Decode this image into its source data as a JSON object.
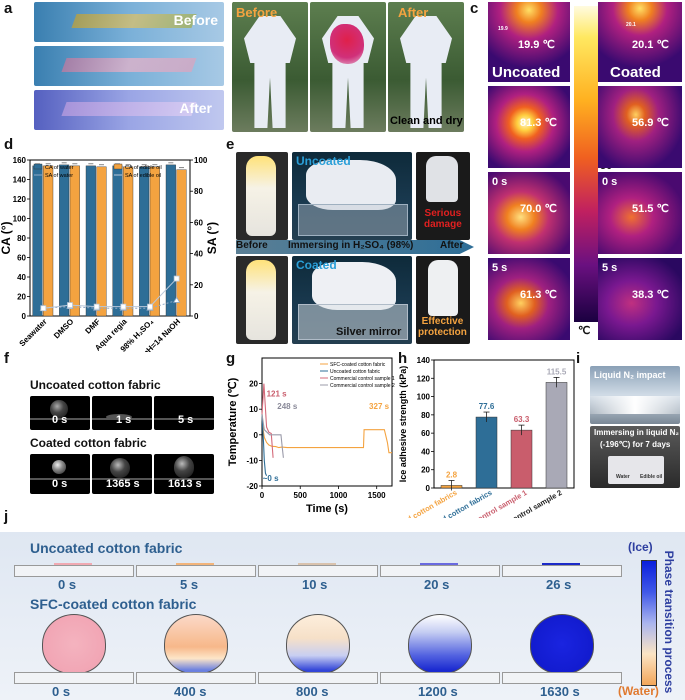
{
  "panels": {
    "a": "a",
    "b": "b",
    "c": "c",
    "d": "d",
    "e": "e",
    "f": "f",
    "g": "g",
    "h": "h",
    "i": "i",
    "j": "j"
  },
  "a": {
    "before": "Before",
    "after": "After"
  },
  "b": {
    "before": "Before",
    "after": "After",
    "caption": "Clean and dry"
  },
  "c": {
    "uncoated": "Uncoated",
    "coated": "Coated",
    "uncoated_temps": [
      "19.9 ℃",
      "81.3 ℃",
      "70.0 ℃",
      "61.3 ℃"
    ],
    "coated_temps": [
      "20.1 ℃",
      "56.9 ℃",
      "51.5 ℃",
      "38.3 ℃"
    ],
    "time_labels": [
      "0 s",
      "5 s"
    ],
    "spot_labels": [
      "19.9",
      "20.1"
    ],
    "scale_ticks": [
      "80",
      "70",
      "60",
      "50",
      "40",
      "30",
      "20"
    ],
    "scale_unit": "℃"
  },
  "e": {
    "uncoated": "Uncoated",
    "coated": "Coated",
    "arrow": "Immersing in H₂SO₄ (98%)",
    "before": "Before",
    "after": "After",
    "serious": "Serious",
    "damage": "damage",
    "silver": "Silver mirror",
    "effective": "Effective",
    "protection": "protection"
  },
  "f": {
    "uncoated_title": "Uncoated cotton fabric",
    "coated_title": "Coated cotton fabric",
    "uncoated_times": [
      "0 s",
      "1 s",
      "5 s"
    ],
    "coated_times": [
      "0 s",
      "1365 s",
      "1613 s"
    ]
  },
  "i": {
    "impact": "Liquid N₂ impact",
    "immerse1": "Immersing in liquid N₂",
    "immerse2": "(-196℃) for 7 days",
    "water": "Water",
    "oil": "Edible oil"
  },
  "j": {
    "uncoated_title": "Uncoated cotton fabric",
    "coated_title": "SFC-coated cotton fabric",
    "uncoated_times": [
      "0 s",
      "5 s",
      "10 s",
      "20 s",
      "26 s"
    ],
    "coated_times": [
      "0 s",
      "400 s",
      "800 s",
      "1200 s",
      "1630 s"
    ],
    "bar_top": "(Ice)",
    "bar_bottom": "(Water)",
    "bar_title": "Phase transition process"
  },
  "chart_data": [
    {
      "id": "d",
      "type": "bar",
      "categories": [
        "Seawater",
        "DMSO",
        "DMF",
        "Aqua regia",
        "98% H₂SO₄",
        "pH=14 NaOH"
      ],
      "series": [
        {
          "name": "CA of water",
          "values": [
            154,
            155,
            154,
            154,
            153,
            155
          ],
          "color": "#2e6e97"
        },
        {
          "name": "CA of edible oil",
          "values": [
            154,
            154,
            153,
            153,
            153,
            150
          ],
          "color": "#f4a340"
        },
        {
          "name": "SA of water",
          "values": [
            5,
            6,
            5,
            5,
            5,
            10
          ],
          "color": "#8fa9c7"
        },
        {
          "name": "SA of edible oil",
          "values": [
            5,
            7,
            6,
            6,
            6,
            24
          ],
          "color": "#b9c8da"
        }
      ],
      "ylabel": "CA (°)",
      "y2label": "SA (°)",
      "ylim": [
        0,
        160
      ],
      "y2lim": [
        0,
        100
      ],
      "yticks": [
        "0",
        "20",
        "40",
        "60",
        "80",
        "100",
        "120",
        "140",
        "160"
      ],
      "y2ticks": [
        "0",
        "20",
        "40",
        "60",
        "80",
        "100"
      ],
      "legend": "top"
    },
    {
      "id": "g",
      "type": "line",
      "xlabel": "Time (s)",
      "ylabel": "Temperature (℃)",
      "xlim": [
        0,
        1700
      ],
      "ylim": [
        -20,
        30
      ],
      "xticks": [
        "0",
        "500",
        "1000",
        "1500"
      ],
      "yticks": [
        "-20",
        "-10",
        "0",
        "10",
        "20"
      ],
      "series": [
        {
          "name": "SFC-coated cotton fabric",
          "color": "#f4a340",
          "x": [
            0,
            15,
            30,
            60,
            90,
            130,
            180,
            220,
            260,
            330,
            400,
            1300,
            1327,
            1335,
            1600,
            1640,
            1660,
            1700
          ],
          "y": [
            8,
            2,
            -1,
            -3,
            -4,
            -4.5,
            -4.6,
            -5,
            -4.8,
            -5,
            -5,
            -5,
            -5,
            2,
            2,
            -3,
            -7,
            -7
          ]
        },
        {
          "name": "Uncoated cotton fabric",
          "color": "#2e6e97",
          "x": [
            0,
            10,
            20,
            30,
            45,
            60
          ],
          "y": [
            8,
            2,
            -3,
            -10,
            -15,
            -16
          ]
        },
        {
          "name": "Commercial control sample 1",
          "color": "#d46a7a",
          "x": [
            0,
            25,
            60,
            90,
            121,
            135,
            145
          ],
          "y": [
            8,
            20,
            3,
            1,
            0.5,
            -5,
            -9
          ]
        },
        {
          "name": "Commercial control sample 2",
          "color": "#9b9baa",
          "x": [
            0,
            30,
            100,
            200,
            248,
            265,
            280
          ],
          "y": [
            8,
            2,
            0,
            0,
            0,
            -5,
            -9
          ]
        }
      ],
      "annotations": [
        "121 s",
        "248 s",
        "~0 s",
        "327 s"
      ],
      "legend": "top-right"
    },
    {
      "id": "h",
      "type": "bar",
      "ylabel": "Ice adhesive strength (kPa)",
      "categories": [
        "SFC-coated cotton fabrics",
        "Uncoated cotton fabrics",
        "Commercial control sample 1",
        "Commercial control sample 2"
      ],
      "values": [
        2.8,
        77.6,
        63.3,
        115.5
      ],
      "labels": [
        "2.8",
        "77.6",
        "63.3",
        "115.5"
      ],
      "colors": [
        "#f4a340",
        "#2e6e97",
        "#c95d6c",
        "#a9a9b6"
      ],
      "ylim": [
        0,
        140
      ],
      "yticks": [
        "0",
        "20",
        "40",
        "60",
        "80",
        "100",
        "120",
        "140"
      ]
    }
  ]
}
